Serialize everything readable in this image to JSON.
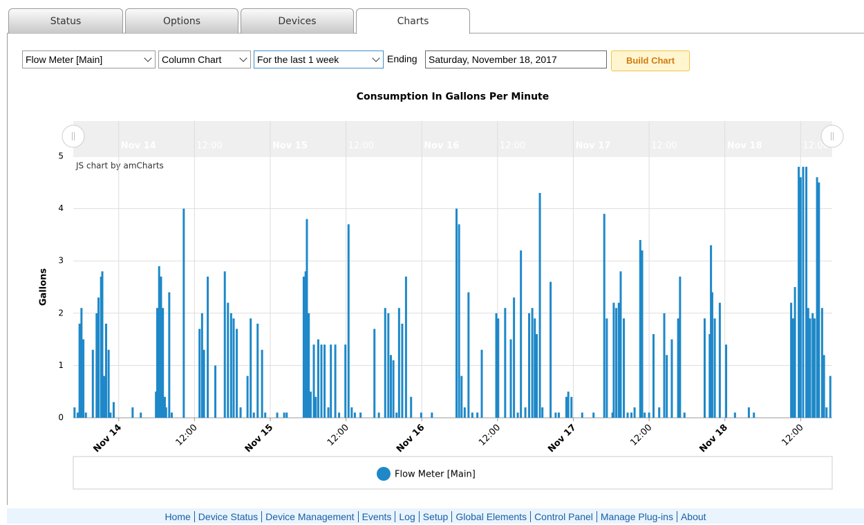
{
  "tabs": [
    "Status",
    "Options",
    "Devices",
    "Charts"
  ],
  "controls": {
    "device": "Flow Meter [Main]",
    "chart_type": "Column Chart",
    "period": "For the last 1 week",
    "ending_label": "Ending",
    "ending_date": "Saturday, November 18, 2017",
    "build_button": "Build Chart"
  },
  "chart_data": {
    "type": "bar",
    "title": "Consumption In Gallons Per Minute",
    "y_label": "Gallons",
    "annotation": "JS chart by amCharts",
    "series": [
      {
        "name": "Flow Meter [Main]",
        "color": "#1e88c8",
        "x": [
          -7.0,
          -6.5,
          -6.2,
          -5.9,
          -5.6,
          -5.2,
          -4.1,
          -3.5,
          -3.2,
          -2.8,
          -2.6,
          -2.3,
          -2.0,
          -1.6,
          -1.3,
          -0.8,
          2.2,
          3.5,
          5.9,
          6.1,
          6.4,
          6.7,
          7.0,
          7.3,
          7.5,
          8.0,
          8.4,
          10.3,
          12.8,
          13.2,
          13.5,
          14.1,
          15.3,
          16.8,
          17.3,
          17.8,
          18.2,
          18.7,
          19.3,
          20.4,
          20.9,
          21.4,
          22.0,
          22.7,
          23.2,
          25.1,
          26.2,
          26.6,
          29.3,
          29.6,
          29.8,
          30.1,
          30.4,
          30.9,
          31.2,
          31.6,
          32.1,
          32.6,
          33.2,
          33.6,
          34.3,
          34.9,
          35.9,
          36.4,
          36.9,
          37.4,
          38.3,
          40.5,
          41.2,
          42.2,
          42.7,
          43.1,
          43.5,
          44.0,
          44.4,
          44.9,
          45.5,
          46.3,
          47.9,
          49.6,
          53.5,
          53.9,
          54.3,
          54.8,
          55.4,
          56.0,
          56.8,
          57.5,
          59.8,
          60.1,
          61.2,
          62.1,
          62.6,
          63.2,
          63.7,
          64.4,
          65.0,
          65.5,
          65.9,
          66.2,
          66.7,
          67.1,
          68.4,
          69.2,
          69.7,
          70.9,
          71.2,
          71.7,
          73.4,
          75.2,
          76.9,
          77.3,
          78.2,
          78.4,
          78.8,
          79.2,
          79.5,
          80.0,
          80.6,
          81.2,
          81.7,
          82.6,
          82.9,
          83.3,
          84.0,
          84.7,
          85.6,
          86.4,
          86.8,
          87.6,
          88.6,
          88.9,
          89.6,
          92.8,
          93.6,
          93.8,
          94.0,
          94.4,
          95.2,
          96.2,
          97.6,
          99.8,
          100.6,
          106.5,
          106.8,
          107.1,
          107.7,
          108.0,
          108.4,
          108.9,
          109.2,
          109.5,
          109.9,
          110.2,
          110.6,
          110.9,
          111.4,
          111.7,
          112.1,
          112.7
        ],
        "values": [
          0.2,
          0.1,
          1.8,
          2.1,
          1.5,
          0.1,
          1.3,
          2.0,
          2.3,
          2.7,
          2.8,
          0.8,
          1.8,
          1.3,
          0.1,
          0.3,
          0.2,
          0.1,
          0.5,
          2.1,
          2.9,
          2.7,
          2.1,
          0.4,
          0.2,
          2.4,
          0.1,
          4.0,
          1.7,
          2.0,
          1.3,
          2.7,
          1.0,
          2.8,
          2.2,
          2.0,
          1.9,
          1.7,
          0.2,
          0.8,
          1.9,
          0.1,
          1.8,
          1.3,
          0.1,
          0.1,
          0.1,
          0.1,
          2.7,
          2.8,
          3.8,
          2.0,
          0.5,
          1.4,
          0.4,
          1.5,
          1.4,
          1.4,
          0.2,
          1.4,
          1.4,
          0.1,
          1.4,
          3.7,
          0.2,
          0.1,
          0.1,
          1.7,
          0.1,
          2.1,
          2.0,
          1.2,
          1.1,
          0.1,
          2.1,
          1.8,
          2.7,
          0.4,
          0.1,
          0.1,
          4.0,
          3.7,
          0.8,
          0.2,
          2.4,
          0.1,
          0.1,
          1.3,
          2.0,
          1.9,
          2.1,
          1.5,
          2.3,
          0.1,
          3.2,
          0.2,
          2.0,
          2.1,
          1.9,
          1.6,
          4.3,
          0.2,
          2.6,
          0.1,
          0.1,
          0.4,
          0.5,
          0.4,
          0.1,
          0.1,
          3.9,
          1.9,
          0.1,
          2.2,
          2.1,
          2.2,
          2.8,
          1.9,
          0.1,
          0.1,
          0.2,
          3.4,
          3.2,
          0.1,
          0.1,
          1.6,
          0.2,
          2.0,
          1.2,
          1.5,
          1.9,
          2.7,
          0.1,
          1.9,
          1.6,
          3.3,
          2.4,
          1.9,
          2.2,
          1.4,
          0.1,
          0.2,
          0.1,
          2.2,
          1.9,
          2.5,
          4.8,
          4.6,
          4.8,
          4.8,
          2.1,
          1.9,
          2.0,
          1.9,
          4.6,
          4.5,
          2.1,
          1.2,
          0.2,
          0.8
        ]
      }
    ],
    "xlim": [
      -7.2,
      113.0
    ],
    "xticks": [
      {
        "value": 0,
        "label": "Nov 14"
      },
      {
        "value": 12,
        "label": "12:00"
      },
      {
        "value": 24,
        "label": "Nov 15"
      },
      {
        "value": 36,
        "label": "12:00"
      },
      {
        "value": 48,
        "label": "Nov 16"
      },
      {
        "value": 60,
        "label": "12:00"
      },
      {
        "value": 72,
        "label": "Nov 17"
      },
      {
        "value": 84,
        "label": "12:00"
      },
      {
        "value": 96,
        "label": "Nov 18"
      },
      {
        "value": 108,
        "label": "12:00"
      }
    ],
    "ylim": [
      0,
      5
    ],
    "yticks": [
      0,
      1,
      2,
      3,
      4,
      5
    ],
    "grid": true,
    "legend": "bottom"
  },
  "footer": [
    "Home",
    "Device Status",
    "Device Management",
    "Events",
    "Log",
    "Setup",
    "Global Elements",
    "Control Panel",
    "Manage Plug-ins",
    "About"
  ]
}
